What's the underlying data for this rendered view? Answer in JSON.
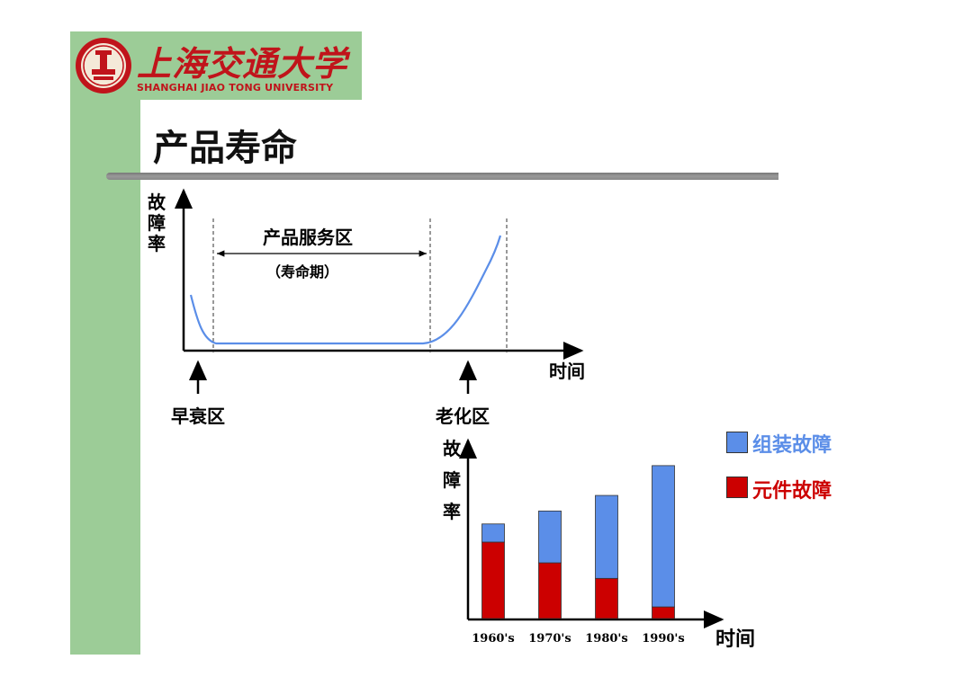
{
  "header": {
    "university_cn": "上海交通大学",
    "university_en": "SHANGHAI JIAO TONG UNIVERSITY",
    "page_title": "产品寿命"
  },
  "figure1": {
    "y_label_chars": [
      "故",
      "障",
      "率"
    ],
    "x_label": "时间",
    "zone_label": "产品服务区",
    "zone_sublabel": "（寿命期）",
    "early_label": "早衰区",
    "aging_label": "老化区"
  },
  "chart_data": {
    "type": "bar",
    "stacked": true,
    "categories": [
      "1960's",
      "1970's",
      "1980's",
      "1990's"
    ],
    "series": [
      {
        "name": "元件故障",
        "color": "#cc0000",
        "values": [
          59,
          43,
          31,
          9
        ]
      },
      {
        "name": "组装故障",
        "color": "#5b8ee8",
        "values": [
          14,
          40,
          64,
          109
        ]
      }
    ],
    "ylabel": "故障率",
    "xlabel": "时间",
    "ylim": [
      0,
      120
    ],
    "grid": false,
    "legend_position": "top-right"
  },
  "colors": {
    "brand_red": "#c0141b",
    "band_green": "#9ccc97",
    "curve_blue": "#5b8ee8"
  }
}
